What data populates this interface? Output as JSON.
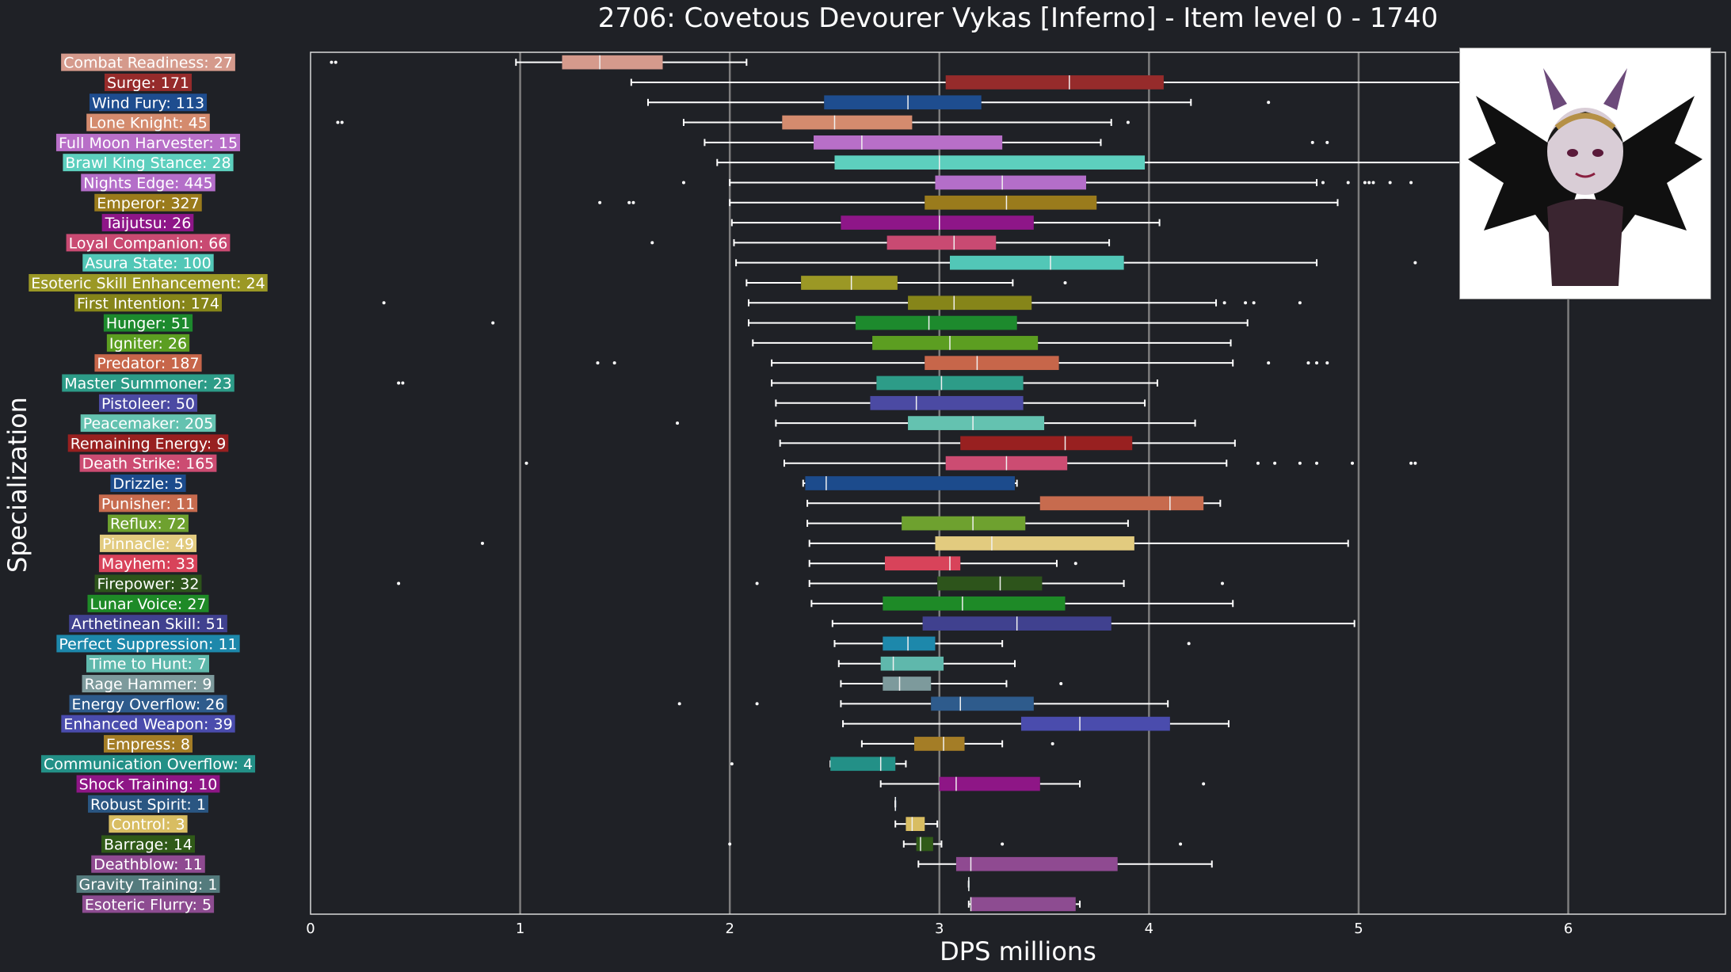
{
  "chart_data": {
    "type": "box",
    "title": "2706: Covetous Devourer Vykas [Inferno] - Item level 0 - 1740",
    "xlabel": "DPS millions",
    "ylabel": "Specialization",
    "xlim": [
      0,
      6.75
    ],
    "xticks": [
      "0",
      "1",
      "2",
      "3",
      "4",
      "5",
      "6"
    ],
    "grid": "vertical",
    "series": [
      {
        "label": "Combat Readiness: 27",
        "color": "#d59a8c",
        "min": 0.98,
        "q1": 1.2,
        "median": 1.38,
        "q3": 1.68,
        "max": 2.08,
        "outliers": [
          0.1,
          0.12
        ]
      },
      {
        "label": "Surge: 171",
        "color": "#962b2b",
        "min": 1.53,
        "q1": 3.03,
        "median": 3.62,
        "q3": 4.07,
        "max": 6.55,
        "outliers": []
      },
      {
        "label": "Wind Fury: 113",
        "color": "#1e4d8f",
        "min": 1.61,
        "q1": 2.45,
        "median": 2.85,
        "q3": 3.2,
        "max": 4.2,
        "outliers": [
          4.57
        ]
      },
      {
        "label": "Lone Knight: 45",
        "color": "#d48b6e",
        "min": 1.78,
        "q1": 2.25,
        "median": 2.5,
        "q3": 2.87,
        "max": 3.82,
        "outliers": [
          0.13,
          0.15,
          3.9
        ]
      },
      {
        "label": "Full Moon Harvester: 15",
        "color": "#b86fc8",
        "min": 1.88,
        "q1": 2.4,
        "median": 2.63,
        "q3": 3.3,
        "max": 3.77,
        "outliers": [
          4.78,
          4.85
        ]
      },
      {
        "label": "Brawl King Stance: 28",
        "color": "#5dcfbe",
        "min": 1.94,
        "q1": 2.5,
        "median": 3.0,
        "q3": 3.98,
        "max": 6.55,
        "outliers": []
      },
      {
        "label": "Nights Edge: 445",
        "color": "#b46ec9",
        "min": 2.0,
        "q1": 2.98,
        "median": 3.3,
        "q3": 3.7,
        "max": 4.8,
        "outliers": [
          1.78,
          4.83,
          4.95,
          5.03,
          5.05,
          5.07,
          5.15,
          5.25
        ]
      },
      {
        "label": "Emperor: 327",
        "color": "#9a7b1c",
        "min": 2.0,
        "q1": 2.93,
        "median": 3.32,
        "q3": 3.75,
        "max": 4.9,
        "outliers": [
          1.38,
          1.52,
          1.54
        ]
      },
      {
        "label": "Taijutsu: 26",
        "color": "#8e1688",
        "min": 2.01,
        "q1": 2.53,
        "median": 3.0,
        "q3": 3.45,
        "max": 4.05,
        "outliers": []
      },
      {
        "label": "Loyal Companion: 66",
        "color": "#c94a72",
        "min": 2.02,
        "q1": 2.75,
        "median": 3.07,
        "q3": 3.27,
        "max": 3.81,
        "outliers": [
          1.63
        ]
      },
      {
        "label": "Asura State: 100",
        "color": "#52c7b7",
        "min": 2.03,
        "q1": 3.05,
        "median": 3.53,
        "q3": 3.88,
        "max": 4.8,
        "outliers": [
          5.27
        ]
      },
      {
        "label": "Esoteric Skill Enhancement: 24",
        "color": "#9b9825",
        "min": 2.08,
        "q1": 2.34,
        "median": 2.58,
        "q3": 2.8,
        "max": 3.35,
        "outliers": [
          3.6
        ]
      },
      {
        "label": "First Intention: 174",
        "color": "#868519",
        "min": 2.09,
        "q1": 2.85,
        "median": 3.07,
        "q3": 3.44,
        "max": 4.32,
        "outliers": [
          0.35,
          4.36,
          4.46,
          4.5,
          4.72
        ]
      },
      {
        "label": "Hunger: 51",
        "color": "#1d8a2d",
        "min": 2.09,
        "q1": 2.6,
        "median": 2.95,
        "q3": 3.37,
        "max": 4.47,
        "outliers": [
          0.87
        ]
      },
      {
        "label": "Igniter: 26",
        "color": "#5c9e21",
        "min": 2.11,
        "q1": 2.68,
        "median": 3.05,
        "q3": 3.47,
        "max": 4.39,
        "outliers": []
      },
      {
        "label": "Predator: 187",
        "color": "#c7664a",
        "min": 2.2,
        "q1": 2.93,
        "median": 3.18,
        "q3": 3.57,
        "max": 4.4,
        "outliers": [
          1.37,
          1.45,
          4.57,
          4.76,
          4.8,
          4.85
        ]
      },
      {
        "label": "Master Summoner: 23",
        "color": "#2d9c88",
        "min": 2.2,
        "q1": 2.7,
        "median": 3.01,
        "q3": 3.4,
        "max": 4.04,
        "outliers": [
          0.42,
          0.44
        ]
      },
      {
        "label": "Pistoleer: 50",
        "color": "#4b4aa3",
        "min": 2.22,
        "q1": 2.67,
        "median": 2.89,
        "q3": 3.4,
        "max": 3.98,
        "outliers": []
      },
      {
        "label": "Peacemaker: 205",
        "color": "#64c2b0",
        "min": 2.22,
        "q1": 2.85,
        "median": 3.16,
        "q3": 3.5,
        "max": 4.22,
        "outliers": [
          1.75
        ]
      },
      {
        "label": "Remaining Energy: 9",
        "color": "#982020",
        "min": 2.24,
        "q1": 3.1,
        "median": 3.6,
        "q3": 3.92,
        "max": 4.41,
        "outliers": []
      },
      {
        "label": "Death Strike: 165",
        "color": "#cc4c72",
        "min": 2.26,
        "q1": 3.03,
        "median": 3.32,
        "q3": 3.61,
        "max": 4.37,
        "outliers": [
          1.03,
          4.52,
          4.6,
          4.72,
          4.8,
          4.97,
          5.25,
          5.27
        ]
      },
      {
        "label": "Drizzle: 5",
        "color": "#1c4b8c",
        "min": 2.35,
        "q1": 2.36,
        "median": 2.46,
        "q3": 3.36,
        "max": 3.37,
        "outliers": []
      },
      {
        "label": "Punisher: 11",
        "color": "#c76b4e",
        "min": 2.37,
        "q1": 3.48,
        "median": 4.1,
        "q3": 4.26,
        "max": 4.34,
        "outliers": []
      },
      {
        "label": "Reflux: 72",
        "color": "#6ea12f",
        "min": 2.37,
        "q1": 2.82,
        "median": 3.16,
        "q3": 3.41,
        "max": 3.9,
        "outliers": []
      },
      {
        "label": "Pinnacle: 49",
        "color": "#e2cb7f",
        "min": 2.38,
        "q1": 2.98,
        "median": 3.25,
        "q3": 3.93,
        "max": 4.95,
        "outliers": [
          0.82
        ]
      },
      {
        "label": "Mayhem: 33",
        "color": "#d8435a",
        "min": 2.38,
        "q1": 2.74,
        "median": 3.05,
        "q3": 3.1,
        "max": 3.56,
        "outliers": [
          3.65
        ]
      },
      {
        "label": "Firepower: 32",
        "color": "#2d541b",
        "min": 2.38,
        "q1": 2.99,
        "median": 3.29,
        "q3": 3.49,
        "max": 3.88,
        "outliers": [
          0.42,
          2.13,
          4.35
        ]
      },
      {
        "label": "Lunar Voice: 27",
        "color": "#1e8a27",
        "min": 2.39,
        "q1": 2.73,
        "median": 3.11,
        "q3": 3.6,
        "max": 4.4,
        "outliers": []
      },
      {
        "label": "Arthetinean Skill: 51",
        "color": "#40418f",
        "min": 2.49,
        "q1": 2.92,
        "median": 3.37,
        "q3": 3.82,
        "max": 4.98,
        "outliers": []
      },
      {
        "label": "Perfect Suppression: 11",
        "color": "#1d88ab",
        "min": 2.5,
        "q1": 2.73,
        "median": 2.85,
        "q3": 2.98,
        "max": 3.3,
        "outliers": [
          4.19
        ]
      },
      {
        "label": "Time to Hunt: 7",
        "color": "#5fb8ac",
        "min": 2.52,
        "q1": 2.72,
        "median": 2.78,
        "q3": 3.02,
        "max": 3.36,
        "outliers": []
      },
      {
        "label": "Rage Hammer: 9",
        "color": "#7d9a9c",
        "min": 2.53,
        "q1": 2.73,
        "median": 2.81,
        "q3": 2.96,
        "max": 3.32,
        "outliers": [
          3.58
        ]
      },
      {
        "label": "Energy Overflow: 26",
        "color": "#2e5b8c",
        "min": 2.53,
        "q1": 2.96,
        "median": 3.1,
        "q3": 3.45,
        "max": 4.09,
        "outliers": [
          1.76,
          2.13
        ]
      },
      {
        "label": "Enhanced Weapon: 39",
        "color": "#4a4cad",
        "min": 2.54,
        "q1": 3.39,
        "median": 3.67,
        "q3": 4.1,
        "max": 4.38,
        "outliers": []
      },
      {
        "label": "Empress: 8",
        "color": "#a47d26",
        "min": 2.63,
        "q1": 2.88,
        "median": 3.02,
        "q3": 3.12,
        "max": 3.3,
        "outliers": [
          3.54
        ]
      },
      {
        "label": "Communication Overflow: 4",
        "color": "#239087",
        "min": 2.48,
        "q1": 2.48,
        "median": 2.72,
        "q3": 2.79,
        "max": 2.84,
        "outliers": [
          2.01
        ]
      },
      {
        "label": "Shock Training: 10",
        "color": "#8e1686",
        "min": 2.72,
        "q1": 3.0,
        "median": 3.08,
        "q3": 3.48,
        "max": 3.67,
        "outliers": [
          4.26
        ]
      },
      {
        "label": "Robust Spirit: 1",
        "color": "#2a5682",
        "min": 2.79,
        "q1": 2.79,
        "median": 2.79,
        "q3": 2.79,
        "max": 2.79,
        "outliers": []
      },
      {
        "label": "Control: 3",
        "color": "#d8bd62",
        "min": 2.79,
        "q1": 2.84,
        "median": 2.87,
        "q3": 2.93,
        "max": 2.99,
        "outliers": []
      },
      {
        "label": "Barrage: 14",
        "color": "#305a18",
        "min": 2.83,
        "q1": 2.89,
        "median": 2.91,
        "q3": 2.97,
        "max": 3.01,
        "outliers": [
          2.0,
          3.3,
          4.15
        ]
      },
      {
        "label": "Deathblow: 11",
        "color": "#8f4a91",
        "min": 2.9,
        "q1": 3.08,
        "median": 3.15,
        "q3": 3.85,
        "max": 4.3,
        "outliers": []
      },
      {
        "label": "Gravity Training: 1",
        "color": "#547b7d",
        "min": 3.14,
        "q1": 3.14,
        "median": 3.14,
        "q3": 3.14,
        "max": 3.14,
        "outliers": []
      },
      {
        "label": "Esoteric Flurry: 5",
        "color": "#8d4c91",
        "min": 3.14,
        "q1": 3.15,
        "median": 3.15,
        "q3": 3.65,
        "max": 3.67,
        "outliers": []
      }
    ]
  },
  "icons": {
    "portrait": "boss-portrait-image"
  }
}
